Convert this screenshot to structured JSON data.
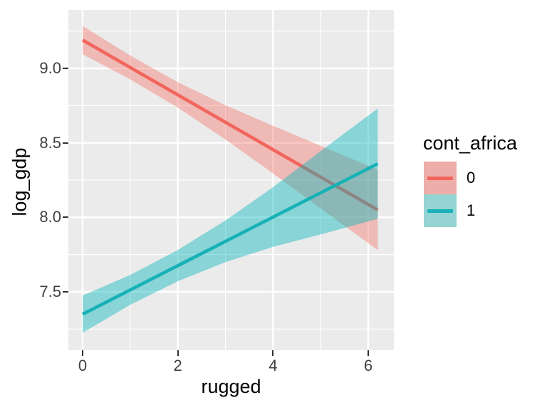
{
  "chart_data": {
    "type": "line",
    "title": "",
    "xlabel": "rugged",
    "ylabel": "log_gdp",
    "xlim": [
      -0.299,
      6.538
    ],
    "ylim": [
      7.108,
      9.392
    ],
    "x_ticks": [
      0,
      2,
      4,
      6
    ],
    "x_tick_labels": [
      "0",
      "2",
      "4",
      "6"
    ],
    "y_ticks": [
      7.5,
      8.0,
      8.5,
      9.0
    ],
    "y_tick_labels": [
      "7.5",
      "8.0",
      "8.5",
      "9.0"
    ],
    "x_minor_ticks": [
      1,
      3,
      5
    ],
    "y_minor_ticks": [
      7.25,
      7.75,
      8.25,
      8.75,
      9.25
    ],
    "grid": true,
    "panel_background": "#EBEBEB",
    "grid_color": "#FFFFFF",
    "legend": {
      "title": "cont_africa",
      "position": "right",
      "entries": [
        {
          "label": "0",
          "key_fill": "#EDADA9",
          "line_color": "#F1655D"
        },
        {
          "label": "1",
          "key_fill": "#94D4D3",
          "line_color": "#17B1B6"
        }
      ]
    },
    "series": [
      {
        "name": "0",
        "line_color": "#F1655D",
        "ribbon_color": "rgba(246,109,100,0.40)",
        "x": [
          0,
          6.2
        ],
        "y": [
          9.19,
          8.05
        ],
        "ribbon_x": [
          0,
          1,
          2,
          3,
          4,
          5,
          6.2
        ],
        "ribbon_upper": [
          9.285,
          9.086,
          8.907,
          8.753,
          8.614,
          8.48,
          8.32
        ],
        "ribbon_lower": [
          9.095,
          8.926,
          8.737,
          8.523,
          8.294,
          8.06,
          7.78
        ]
      },
      {
        "name": "1",
        "line_color": "#17B1B6",
        "ribbon_color": "rgba(0,180,185,0.42)",
        "x": [
          0,
          6.2
        ],
        "y": [
          7.35,
          8.36
        ],
        "ribbon_x": [
          0,
          1,
          2,
          3,
          4,
          5,
          6.2
        ],
        "ribbon_upper": [
          7.475,
          7.613,
          7.781,
          7.979,
          8.202,
          8.445,
          8.73
        ],
        "ribbon_lower": [
          7.225,
          7.413,
          7.571,
          7.699,
          7.802,
          7.885,
          7.99
        ]
      }
    ]
  }
}
